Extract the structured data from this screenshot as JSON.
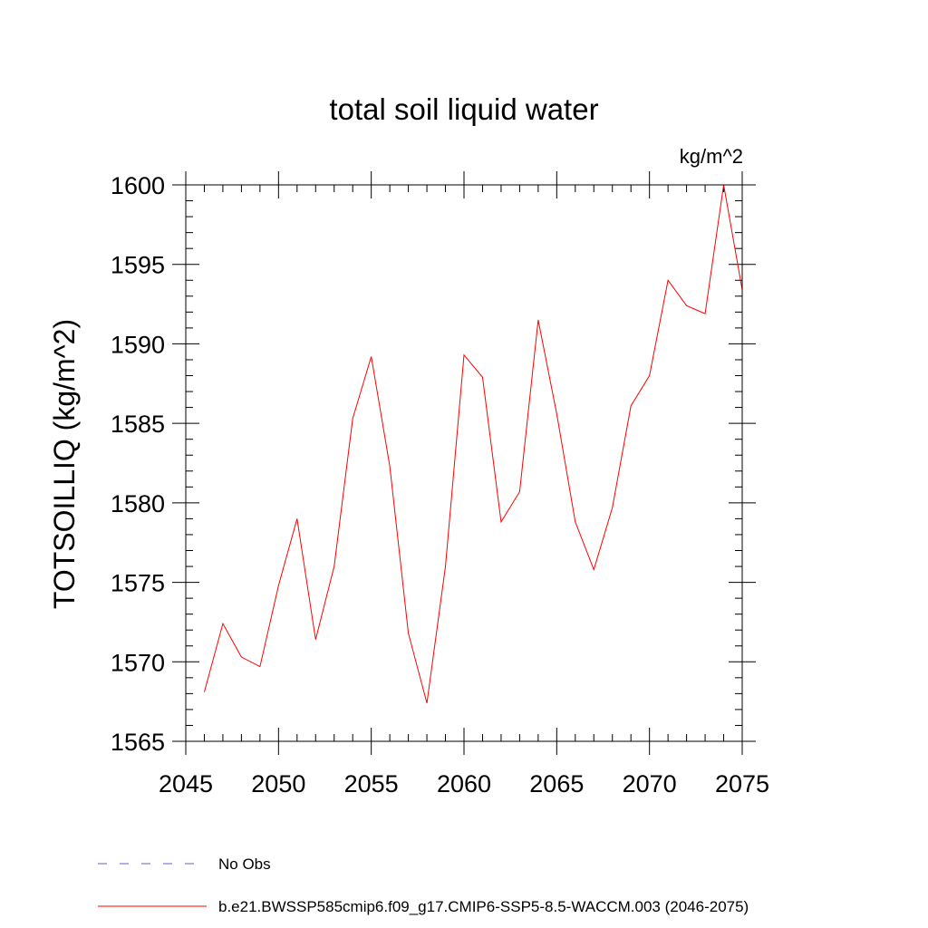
{
  "chart_data": {
    "type": "line",
    "title": "total soil liquid water",
    "units_label": "kg/m^2",
    "ylabel": "TOTSOILLIQ  (kg/m^2)",
    "xlabel": "",
    "xlim": [
      2045,
      2075
    ],
    "ylim": [
      1565,
      1600
    ],
    "xticks": [
      2045,
      2050,
      2055,
      2060,
      2065,
      2070,
      2075
    ],
    "yticks": [
      1565,
      1570,
      1575,
      1580,
      1585,
      1590,
      1595,
      1600
    ],
    "x_minor_step": 1,
    "y_minor_step": 1,
    "series": [
      {
        "name": "No Obs",
        "color": "#6a5acd",
        "style": "dashed",
        "x": [],
        "y": []
      },
      {
        "name": "b.e21.BWSSP585cmip6.f09_g17.CMIP6-SSP5-8.5-WACCM.003 (2046-2075)",
        "color": "#ff0000",
        "style": "solid",
        "x": [
          2046,
          2047,
          2048,
          2049,
          2050,
          2051,
          2052,
          2053,
          2054,
          2055,
          2056,
          2057,
          2058,
          2059,
          2060,
          2061,
          2062,
          2063,
          2064,
          2065,
          2066,
          2067,
          2068,
          2069,
          2070,
          2071,
          2072,
          2073,
          2074,
          2075
        ],
        "y": [
          1568.1,
          1572.4,
          1570.3,
          1569.7,
          1574.8,
          1579.0,
          1571.4,
          1576.0,
          1585.3,
          1589.2,
          1582.3,
          1571.8,
          1567.4,
          1576.0,
          1589.3,
          1587.9,
          1578.8,
          1580.7,
          1591.5,
          1585.6,
          1578.8,
          1575.8,
          1579.7,
          1586.1,
          1588.0,
          1594.0,
          1592.4,
          1591.9,
          1600.0,
          1593.4
        ]
      }
    ]
  }
}
